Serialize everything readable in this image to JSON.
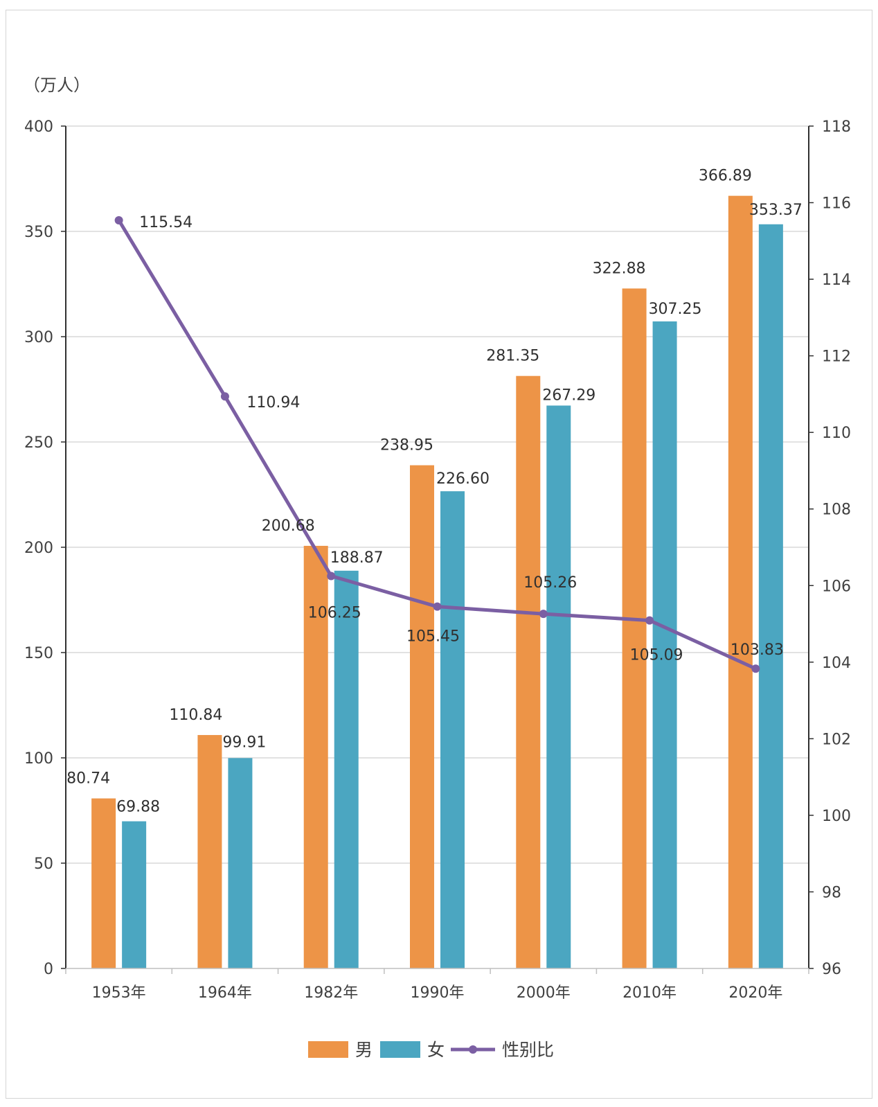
{
  "chart_data": {
    "type": "bar",
    "combo": "bar+line",
    "y_unit_label": "（万人）",
    "categories": [
      "1953年",
      "1964年",
      "1982年",
      "1990年",
      "2000年",
      "2010年",
      "2020年"
    ],
    "series": [
      {
        "name": "男",
        "type": "bar",
        "axis": "left",
        "color": "#ED9447",
        "values": [
          80.74,
          110.84,
          200.68,
          238.95,
          281.35,
          322.88,
          366.89
        ],
        "labels": [
          "80.74",
          "110.84",
          "200.68",
          "238.95",
          "281.35",
          "322.88",
          "366.89"
        ]
      },
      {
        "name": "女",
        "type": "bar",
        "axis": "left",
        "color": "#4BA6C1",
        "values": [
          69.88,
          99.91,
          188.87,
          226.6,
          267.29,
          307.25,
          353.37
        ],
        "labels": [
          "69.88",
          "99.91",
          "188.87",
          "226.60",
          "267.29",
          "307.25",
          "353.37"
        ]
      },
      {
        "name": "性别比",
        "type": "line",
        "axis": "right",
        "color": "#7B5FA3",
        "values": [
          115.54,
          110.94,
          106.25,
          105.45,
          105.26,
          105.09,
          103.83
        ],
        "labels": [
          "115.54",
          "110.94",
          "106.25",
          "105.45",
          "105.26",
          "105.09",
          "103.83"
        ]
      }
    ],
    "y_left": {
      "min": 0,
      "max": 400,
      "ticks": [
        "0",
        "50",
        "100",
        "150",
        "200",
        "250",
        "300",
        "350",
        "400"
      ]
    },
    "y_right": {
      "min": 96,
      "max": 118,
      "ticks": [
        "96",
        "98",
        "100",
        "102",
        "104",
        "106",
        "108",
        "110",
        "112",
        "114",
        "116",
        "118"
      ]
    },
    "grid": true,
    "legend_position": "bottom"
  }
}
